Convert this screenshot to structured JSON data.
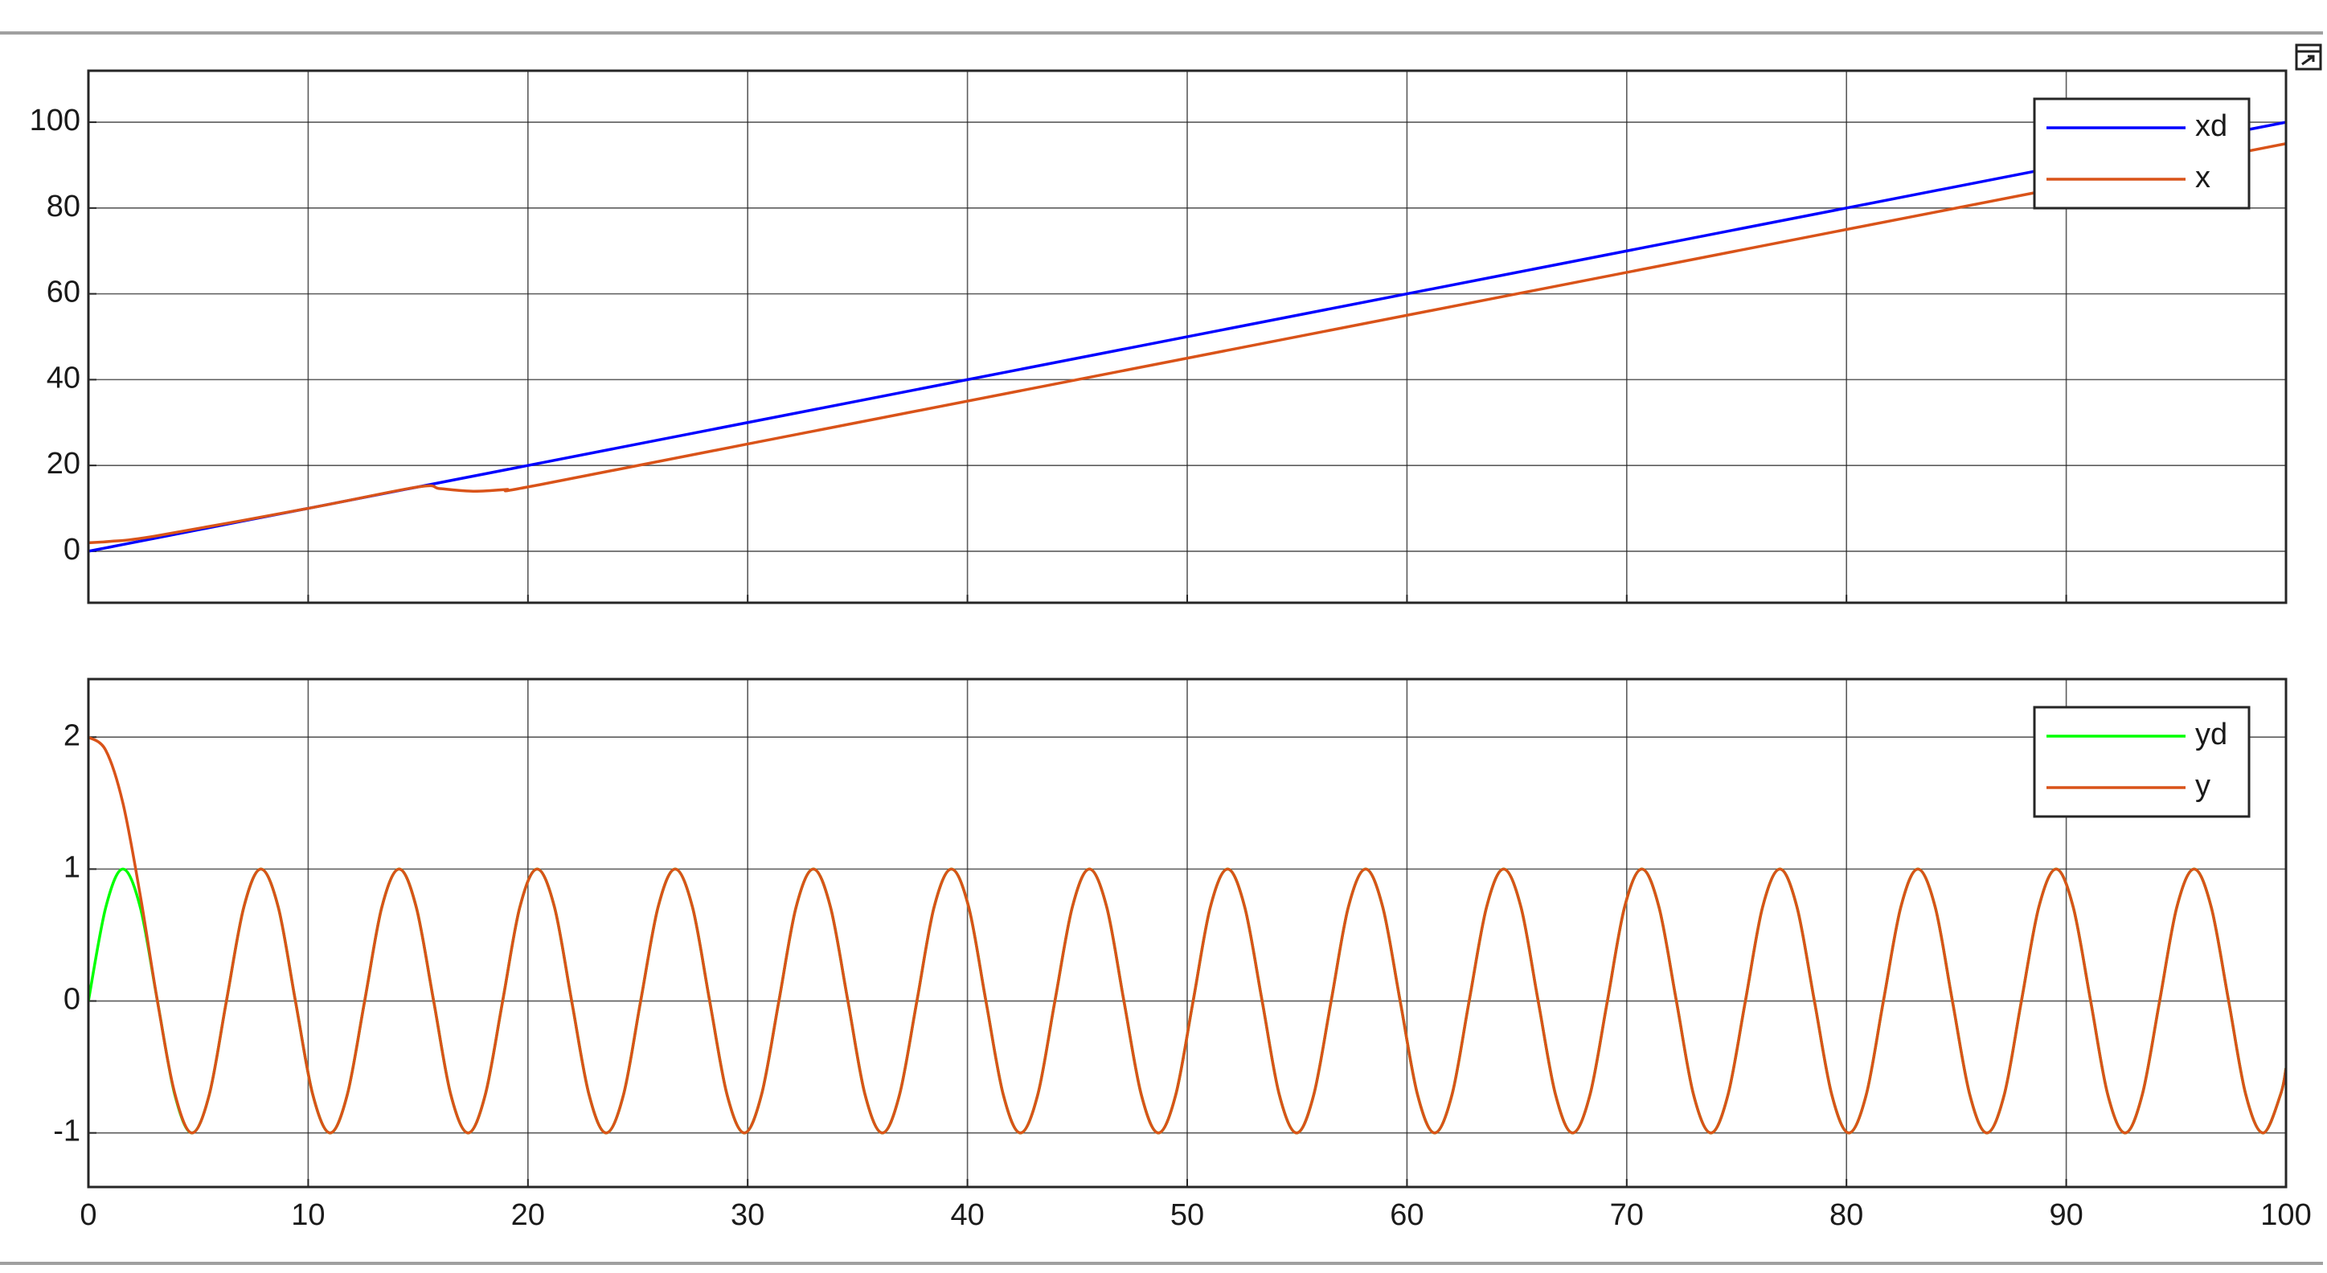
{
  "chart_data": [
    {
      "type": "line",
      "x": [
        0,
        1,
        3,
        10,
        15,
        16,
        17.5,
        19,
        20,
        30,
        100
      ],
      "series": [
        {
          "name": "xd",
          "color": "#0000ff",
          "values": [
            0,
            1,
            3,
            10,
            15,
            16,
            17.5,
            19,
            20,
            30,
            100
          ]
        },
        {
          "name": "x",
          "color": "#d95319",
          "values": [
            2,
            2.3,
            3.5,
            10,
            15,
            14.6,
            14,
            14.4,
            15,
            25,
            95
          ]
        }
      ],
      "xlim": [
        0,
        100
      ],
      "xticks": [
        0,
        10,
        20,
        30,
        40,
        50,
        60,
        70,
        80,
        90,
        100
      ],
      "show_xtick_labels": false,
      "ylim": [
        -12,
        112
      ],
      "yticks": [
        0,
        20,
        40,
        60,
        80,
        100
      ],
      "grid": true,
      "legend": "upper-right"
    },
    {
      "type": "line",
      "x": [
        0,
        0.79,
        1.57,
        2.36,
        3.14,
        3.93,
        4.71,
        5.5,
        6.28,
        7.07,
        7.85,
        8.64,
        9.42,
        10.21,
        11.0,
        11.78,
        12.57,
        13.35,
        14.14,
        14.92,
        15.71,
        16.49,
        17.28,
        18.06,
        18.85,
        19.63,
        20.42,
        21.21,
        21.99,
        22.78,
        23.56,
        24.35,
        25.13,
        25.92,
        26.7,
        27.49,
        28.27,
        29.06,
        29.85,
        30.63,
        31.42,
        32.2,
        32.99,
        33.77,
        34.56,
        35.34,
        36.13,
        36.91,
        37.7,
        38.48,
        39.27,
        40.06,
        40.84,
        41.63,
        42.41,
        43.2,
        43.98,
        44.77,
        45.55,
        46.34,
        47.12,
        47.91,
        48.69,
        49.48,
        50.27,
        51.05,
        51.84,
        52.62,
        53.41,
        54.19,
        54.98,
        55.76,
        56.55,
        57.33,
        58.12,
        58.9,
        59.69,
        60.48,
        61.26,
        62.05,
        62.83,
        63.62,
        64.4,
        65.19,
        65.97,
        66.76,
        67.54,
        68.33,
        69.12,
        69.9,
        70.69,
        71.47,
        72.26,
        73.04,
        73.83,
        74.61,
        75.4,
        76.18,
        76.97,
        77.75,
        78.54,
        79.33,
        80.11,
        80.9,
        81.68,
        82.47,
        83.25,
        84.04,
        84.82,
        85.61,
        86.39,
        87.18,
        87.96,
        88.75,
        89.54,
        90.32,
        91.11,
        91.89,
        92.68,
        93.46,
        94.25,
        95.03,
        95.82,
        96.6,
        97.39,
        98.17,
        98.96,
        99.75,
        100
      ],
      "series": [
        {
          "name": "yd",
          "color": "#00ff00",
          "values": [
            0,
            0.71,
            1,
            0.71,
            0,
            -0.71,
            -1,
            -0.71,
            0,
            0.71,
            1,
            0.71,
            0,
            -0.71,
            -1,
            -0.71,
            0,
            0.71,
            1,
            0.71,
            0,
            -0.71,
            -1,
            -0.71,
            0,
            0.71,
            1,
            0.71,
            0,
            -0.71,
            -1,
            -0.71,
            0,
            0.71,
            1,
            0.71,
            0,
            -0.71,
            -1,
            -0.71,
            0,
            0.71,
            1,
            0.71,
            0,
            -0.71,
            -1,
            -0.71,
            0,
            0.71,
            1,
            0.71,
            0,
            -0.71,
            -1,
            -0.71,
            0,
            0.71,
            1,
            0.71,
            0,
            -0.71,
            -1,
            -0.71,
            0,
            0.71,
            1,
            0.71,
            0,
            -0.71,
            -1,
            -0.71,
            0,
            0.71,
            1,
            0.71,
            0,
            -0.71,
            -1,
            -0.71,
            0,
            0.71,
            1,
            0.71,
            0,
            -0.71,
            -1,
            -0.71,
            0,
            0.71,
            1,
            0.71,
            0,
            -0.71,
            -1,
            -0.71,
            0,
            0.71,
            1,
            0.71,
            0,
            -0.71,
            -1,
            -0.71,
            0,
            0.71,
            1,
            0.71,
            0,
            -0.71,
            -1,
            -0.71,
            0,
            0.71,
            1,
            0.71,
            0,
            -0.71,
            -1,
            -0.71,
            0,
            0.71,
            1,
            0.71,
            0,
            -0.71,
            -1,
            -0.71,
            -0.51
          ]
        },
        {
          "name": "y",
          "color": "#d95319",
          "values": [
            2,
            1.9,
            1.5,
            0.8,
            0,
            -0.7,
            -1,
            -0.71,
            0,
            0.71,
            1,
            0.71,
            0,
            -0.71,
            -1,
            -0.71,
            0,
            0.71,
            1,
            0.71,
            0,
            -0.71,
            -1,
            -0.71,
            0,
            0.71,
            1,
            0.71,
            0,
            -0.71,
            -1,
            -0.71,
            0,
            0.71,
            1,
            0.71,
            0,
            -0.71,
            -1,
            -0.71,
            0,
            0.71,
            1,
            0.71,
            0,
            -0.71,
            -1,
            -0.71,
            0,
            0.71,
            1,
            0.71,
            0,
            -0.71,
            -1,
            -0.71,
            0,
            0.71,
            1,
            0.71,
            0,
            -0.71,
            -1,
            -0.71,
            0,
            0.71,
            1,
            0.71,
            0,
            -0.71,
            -1,
            -0.71,
            0,
            0.71,
            1,
            0.71,
            0,
            -0.71,
            -1,
            -0.71,
            0,
            0.71,
            1,
            0.71,
            0,
            -0.71,
            -1,
            -0.71,
            0,
            0.71,
            1,
            0.71,
            0,
            -0.71,
            -1,
            -0.71,
            0,
            0.71,
            1,
            0.71,
            0,
            -0.71,
            -1,
            -0.71,
            0,
            0.71,
            1,
            0.71,
            0,
            -0.71,
            -1,
            -0.71,
            0,
            0.71,
            1,
            0.71,
            0,
            -0.71,
            -1,
            -0.71,
            0,
            0.71,
            1,
            0.71,
            0,
            -0.71,
            -1,
            -0.71,
            -0.51
          ]
        }
      ],
      "xlim": [
        0,
        100
      ],
      "xticks": [
        0,
        10,
        20,
        30,
        40,
        50,
        60,
        70,
        80,
        90,
        100
      ],
      "show_xtick_labels": true,
      "ylim": [
        -1.41,
        2.44
      ],
      "yticks": [
        -1,
        0,
        1,
        2
      ],
      "grid": true,
      "legend": "upper-right"
    }
  ]
}
